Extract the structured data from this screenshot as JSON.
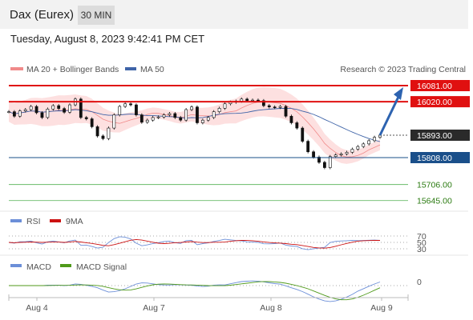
{
  "header": {
    "title": "Dax (Eurex)",
    "timeframe": "30 MIN",
    "datetime": "Tuesday, August 8, 2023 9:42:41 PM CET"
  },
  "legend": {
    "bollinger": "MA 20 + Bollinger Bands",
    "ma50": "MA 50",
    "credit": "Research © 2023 Trading Central",
    "rsi": "RSI",
    "rsi_ma": "9MA",
    "macd": "MACD",
    "macd_signal": "MACD Signal"
  },
  "colors": {
    "resistance": "#e01010",
    "support": "#1a4f8a",
    "target": "#2aa02a",
    "arrow": "#2d63b0",
    "current": "#2a2a2a",
    "bollinger_fill": "#fde0e0",
    "bollinger_line": "#f08a8a",
    "ma50": "#3f64a8",
    "candle": "#111111",
    "rsi": "#6c8fd8",
    "rsi_ma": "#cc1111",
    "macd": "#6c8fd8",
    "macd_signal": "#4f9a1a"
  },
  "chart_data": {
    "type": "line",
    "title": "Dax (Eurex)",
    "timeframe": "30 MIN",
    "x_ticks": [
      "Aug 4",
      "Aug 7",
      "Aug 8",
      "Aug 9"
    ],
    "ylim": [
      15580,
      16100
    ],
    "levels": [
      {
        "value": 16081.0,
        "label": "16081.00",
        "kind": "resistance"
      },
      {
        "value": 16020.0,
        "label": "16020.00",
        "kind": "resistance"
      },
      {
        "value": 15893.0,
        "label": "15893.00",
        "kind": "current"
      },
      {
        "value": 15808.0,
        "label": "15808.00",
        "kind": "support"
      },
      {
        "value": 15706.0,
        "label": "15706.00",
        "kind": "target"
      },
      {
        "value": 15645.0,
        "label": "15645.00",
        "kind": "target"
      }
    ],
    "price_path": [
      15982,
      15965,
      15985,
      15990,
      16002,
      15978,
      15960,
      15992,
      16005,
      15994,
      15980,
      16008,
      16030,
      15960,
      15955,
      15925,
      15890,
      15880,
      15920,
      15970,
      16002,
      16012,
      16008,
      15970,
      15942,
      15950,
      15960,
      15962,
      15970,
      15975,
      15960,
      15950,
      15990,
      16000,
      15940,
      15950,
      15960,
      15982,
      15995,
      16012,
      16018,
      16022,
      16030,
      16024,
      16026,
      16024,
      16005,
      16000,
      15998,
      16002,
      15965,
      15940,
      15920,
      15870,
      15830,
      15810,
      15790,
      15770,
      15812,
      15818,
      15822,
      15828,
      15840,
      15850,
      15860,
      15872,
      15885,
      15893
    ],
    "projection": {
      "from": 15893,
      "to": 16081
    },
    "rsi": {
      "levels": [
        70,
        50,
        30
      ]
    },
    "macd": {
      "levels": [
        0
      ]
    }
  }
}
